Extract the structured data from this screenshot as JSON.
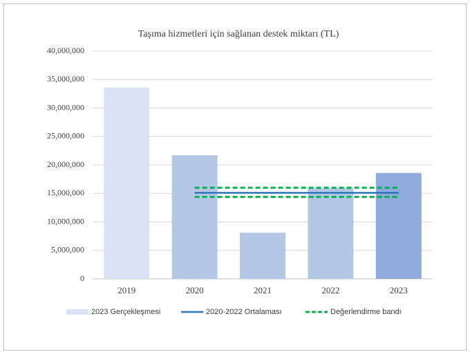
{
  "chart_data": {
    "type": "bar",
    "title": "Taşıma hizmetleri için sağlanan destek miktarı (TL)",
    "categories": [
      "2019",
      "2020",
      "2021",
      "2022",
      "2023"
    ],
    "series": [
      {
        "name": "2023 Gerçekleşmesi",
        "type": "bar",
        "color": "#dae3f3",
        "colors": [
          "#dae3f3",
          "#b4c7e7",
          "#b4c7e7",
          "#b4c7e7",
          "#8faadc"
        ],
        "values": [
          33600000,
          21700000,
          8100000,
          15900000,
          18600000
        ]
      },
      {
        "name": "2020-2022 Ortalaması",
        "type": "line",
        "color": "#2e75b6",
        "dash": false,
        "values": [
          null,
          15100000,
          15100000,
          15100000,
          15100000
        ]
      },
      {
        "name": "Değerlendirme bandı",
        "type": "band",
        "color": "#00b050",
        "dash": true,
        "values": [
          null,
          16000000,
          16000000,
          16000000,
          16000000
        ],
        "lower": [
          null,
          14400000,
          14400000,
          14400000,
          14400000
        ]
      }
    ],
    "ylim": [
      0,
      40000000
    ],
    "yticks": [
      0,
      {
        "value": 5000000,
        "label": "5,000,000"
      },
      {
        "value": 10000000,
        "label": "10,000,000"
      },
      {
        "value": 15000000,
        "label": "15,000,000"
      },
      {
        "value": 20000000,
        "label": "20,000,000"
      },
      {
        "value": 25000000,
        "label": "25,000,000"
      },
      {
        "value": 30000000,
        "label": "30,000,000"
      },
      {
        "value": 35000000,
        "label": "35,000,000"
      },
      {
        "value": 40000000,
        "label": "40,000,000"
      }
    ],
    "grid": true,
    "legend": "bottom"
  }
}
